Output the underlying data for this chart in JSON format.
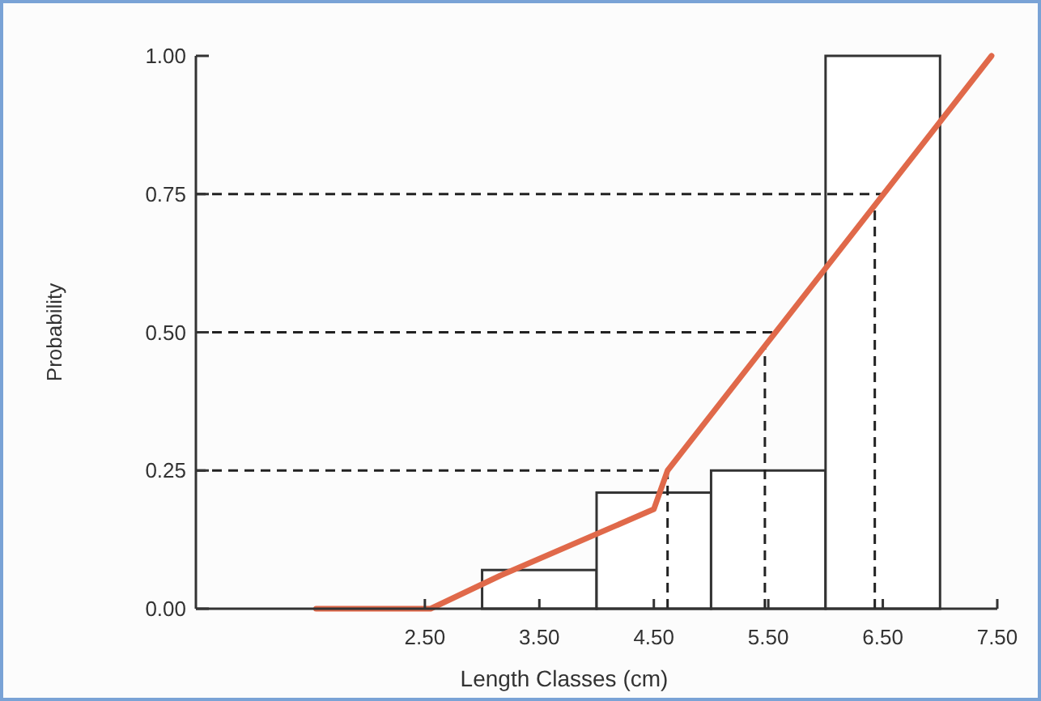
{
  "chart_data": {
    "type": "histogram",
    "xlabel": "Length Classes (cm)",
    "ylabel": "Probability",
    "bins": [
      3,
      4,
      5,
      6,
      7
    ],
    "values": [
      0.07,
      0.21,
      0.25,
      1.0
    ],
    "color": "#ffffff",
    "series": [
      {
        "type": "line",
        "color": "#e0694a",
        "x": [
          1.55,
          2.55,
          3.16,
          4.5,
          4.62,
          7.45
        ],
        "values": [
          0,
          0,
          0.06,
          0.18,
          0.25,
          1.0
        ]
      }
    ],
    "xlim": [
      0.5,
      7.5
    ],
    "xticks": [
      {
        "value": 2.5,
        "label": "2.50"
      },
      {
        "value": 3.5,
        "label": "3.50"
      },
      {
        "value": 4.5,
        "label": "4.50"
      },
      {
        "value": 5.5,
        "label": "5.50"
      },
      {
        "value": 6.5,
        "label": "6.50"
      },
      {
        "value": 7.5,
        "label": "7.50"
      }
    ],
    "ylim": [
      0,
      1
    ],
    "yticks": [
      {
        "value": 0,
        "label": "0.00"
      },
      0.25,
      {
        "value": 0.5,
        "label": "0.50"
      },
      0.75,
      {
        "value": 1,
        "label": "1.00"
      }
    ],
    "ref_lines": [
      {
        "axis": "y",
        "value": 0.25,
        "line_style": "dashed",
        "color": "#222222"
      },
      {
        "axis": "y",
        "value": 0.5,
        "line_style": "dashed",
        "color": "#222222"
      },
      {
        "axis": "y",
        "value": 0.75,
        "line_style": "dashed",
        "color": "#222222"
      },
      {
        "axis": "x",
        "value": 4.62,
        "line_style": "dashed",
        "color": "#222222"
      },
      {
        "axis": "x",
        "value": 5.47,
        "line_style": "dashed",
        "color": "#222222"
      },
      {
        "axis": "x",
        "value": 6.43,
        "line_style": "dashed",
        "color": "#222222"
      }
    ]
  }
}
